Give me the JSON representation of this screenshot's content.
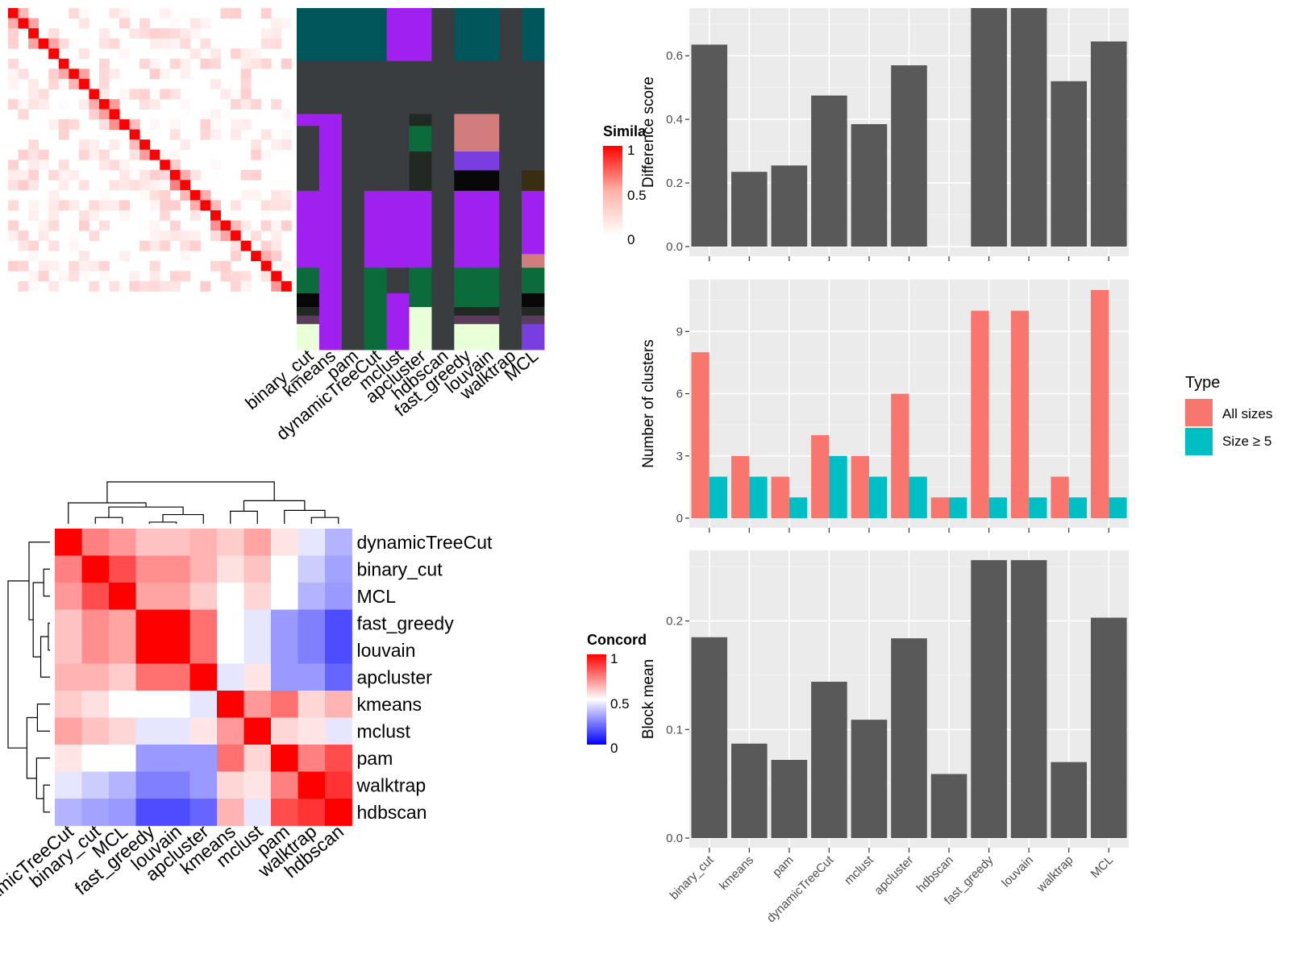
{
  "heatmap_legends": {
    "similarity": {
      "title": "Simila",
      "ticks": [
        "1",
        "0.5",
        "0"
      ]
    },
    "concordance": {
      "title": "Concord",
      "ticks": [
        "1",
        "0.5",
        "0"
      ]
    }
  },
  "methods": [
    "binary_cut",
    "kmeans",
    "pam",
    "dynamicTreeCut",
    "mclust",
    "apcluster",
    "hdbscan",
    "fast_greedy",
    "louvain",
    "walktrap",
    "MCL"
  ],
  "legend": {
    "title": "Type",
    "items": [
      {
        "label": "All sizes",
        "color": "#F8766D"
      },
      {
        "label": "Size ≥ 5",
        "color": "#00BFC4"
      }
    ]
  },
  "colors": {
    "panel_bg": "#EBEBEB",
    "bar_dark": "#595959",
    "sim_high": "#FF0000",
    "conc_low": "#0000FF"
  },
  "chart_data": [
    {
      "type": "bar",
      "ylabel": "Difference score",
      "categories": [
        "binary_cut",
        "kmeans",
        "pam",
        "dynamicTreeCut",
        "mclust",
        "apcluster",
        "hdbscan",
        "fast_greedy",
        "louvain",
        "walktrap",
        "MCL"
      ],
      "values": [
        0.635,
        0.235,
        0.255,
        0.475,
        0.385,
        0.57,
        0,
        0.75,
        0.75,
        0.52,
        0.645
      ],
      "ylim": [
        0,
        0.75
      ],
      "yticks": [
        "0.0",
        "0.2",
        "0.4",
        "0.6"
      ],
      "grid": true
    },
    {
      "type": "bar",
      "ylabel": "Number of clusters",
      "categories": [
        "binary_cut",
        "kmeans",
        "pam",
        "dynamicTreeCut",
        "mclust",
        "apcluster",
        "hdbscan",
        "fast_greedy",
        "louvain",
        "walktrap",
        "MCL"
      ],
      "series": [
        {
          "name": "All sizes",
          "values": [
            8,
            3,
            2,
            4,
            3,
            6,
            1,
            10,
            10,
            2,
            11
          ]
        },
        {
          "name": "Size ≥ 5",
          "values": [
            2,
            2,
            1,
            3,
            2,
            2,
            1,
            1,
            1,
            1,
            1
          ]
        }
      ],
      "ylim": [
        0,
        11.5
      ],
      "yticks": [
        "0",
        "3",
        "6",
        "9"
      ],
      "legend_position": "right",
      "grid": true
    },
    {
      "type": "bar",
      "ylabel": "Block mean",
      "categories": [
        "binary_cut",
        "kmeans",
        "pam",
        "dynamicTreeCut",
        "mclust",
        "apcluster",
        "hdbscan",
        "fast_greedy",
        "louvain",
        "walktrap",
        "MCL"
      ],
      "values": [
        0.185,
        0.087,
        0.072,
        0.144,
        0.109,
        0.184,
        0.059,
        0.256,
        0.256,
        0.07,
        0.203
      ],
      "ylim": [
        0,
        0.265
      ],
      "yticks": [
        "0.0",
        "0.1",
        "0.2"
      ],
      "grid": true
    },
    {
      "type": "heatmap",
      "rows": [
        "dynamicTreeCut",
        "binary_cut",
        "MCL",
        "fast_greedy",
        "louvain",
        "apcluster",
        "kmeans",
        "mclust",
        "pam",
        "walktrap",
        "hdbscan"
      ],
      "cols": [
        "dynamicTreeCut",
        "binary_cut",
        "MCL",
        "fast_greedy",
        "louvain",
        "apcluster",
        "kmeans",
        "mclust",
        "pam",
        "walktrap",
        "hdbscan"
      ],
      "values": [
        [
          1.0,
          0.75,
          0.7,
          0.62,
          0.62,
          0.65,
          0.6,
          0.68,
          0.55,
          0.45,
          0.35
        ],
        [
          0.75,
          1.0,
          0.85,
          0.72,
          0.72,
          0.65,
          0.56,
          0.62,
          0.5,
          0.4,
          0.32
        ],
        [
          0.7,
          0.85,
          1.0,
          0.68,
          0.68,
          0.6,
          0.5,
          0.58,
          0.5,
          0.35,
          0.3
        ],
        [
          0.62,
          0.72,
          0.68,
          1.0,
          1.0,
          0.78,
          0.5,
          0.45,
          0.3,
          0.25,
          0.15
        ],
        [
          0.62,
          0.72,
          0.68,
          1.0,
          1.0,
          0.78,
          0.5,
          0.45,
          0.3,
          0.25,
          0.15
        ],
        [
          0.65,
          0.65,
          0.6,
          0.78,
          0.78,
          1.0,
          0.45,
          0.55,
          0.3,
          0.3,
          0.2
        ],
        [
          0.6,
          0.56,
          0.5,
          0.5,
          0.5,
          0.45,
          1.0,
          0.7,
          0.78,
          0.58,
          0.65
        ],
        [
          0.68,
          0.62,
          0.58,
          0.45,
          0.45,
          0.55,
          0.7,
          1.0,
          0.58,
          0.55,
          0.45
        ],
        [
          0.55,
          0.5,
          0.5,
          0.3,
          0.3,
          0.3,
          0.78,
          0.58,
          1.0,
          0.75,
          0.85
        ],
        [
          0.45,
          0.4,
          0.35,
          0.25,
          0.25,
          0.3,
          0.58,
          0.55,
          0.75,
          1.0,
          0.9
        ],
        [
          0.35,
          0.32,
          0.3,
          0.15,
          0.15,
          0.2,
          0.65,
          0.45,
          0.85,
          0.9,
          1.0
        ]
      ]
    }
  ]
}
